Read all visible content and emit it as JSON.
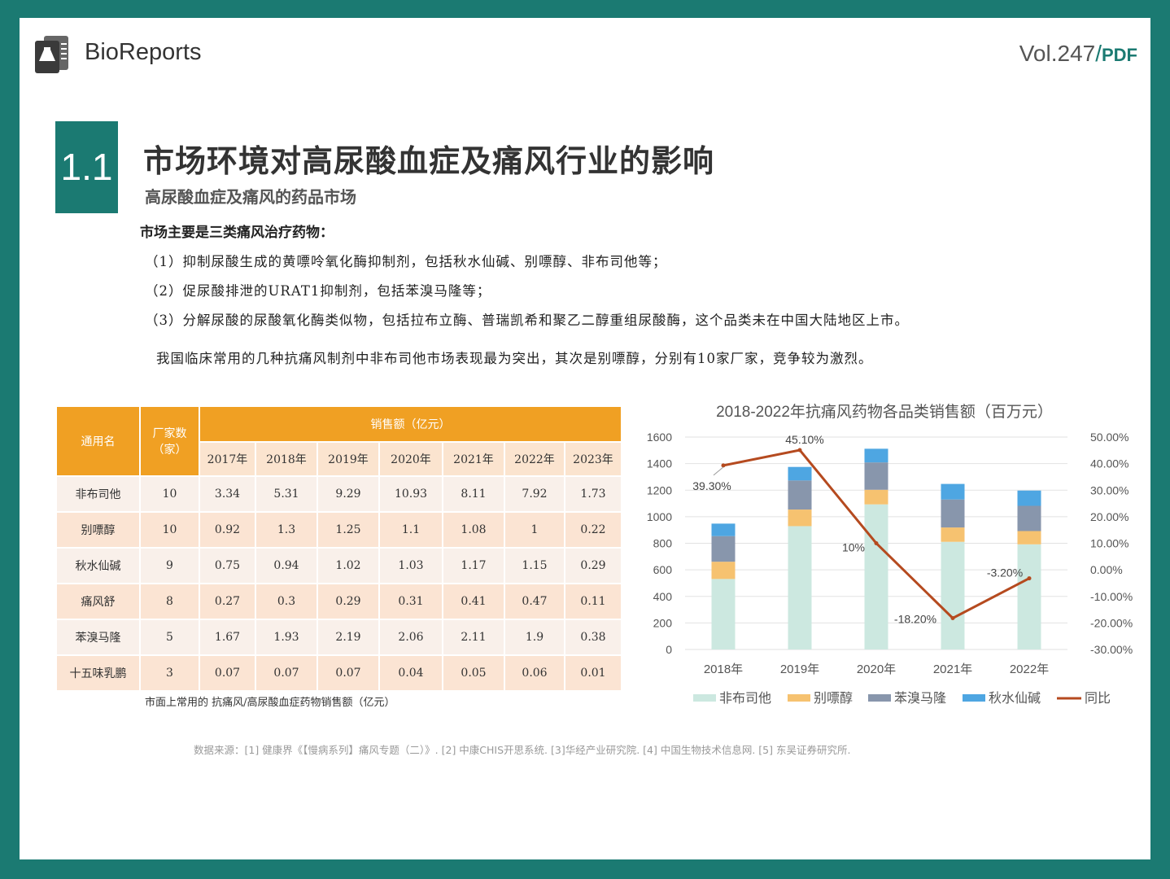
{
  "header": {
    "brand": "BioReports",
    "vol": "Vol.247",
    "slash": "/",
    "pdf": "PDF"
  },
  "section": {
    "number": "1.1",
    "title": "市场环境对高尿酸血症及痛风行业的影响",
    "subtitle": "高尿酸血症及痛风的药品市场"
  },
  "body": {
    "intro": "市场主要是三类痛风治疗药物：",
    "bullets": [
      "（1）抑制尿酸生成的黄嘌呤氧化酶抑制剂，包括秋水仙碱、别嘌醇、非布司他等；",
      "（2）促尿酸排泄的URAT1抑制剂，包括苯溴马隆等；",
      "（3）分解尿酸的尿酸氧化酶类似物，包括拉布立酶、普瑞凯希和聚乙二醇重组尿酸酶，这个品类未在中国大陆地区上市。"
    ],
    "paragraph": "我国临床常用的几种抗痛风制剂中非布司他市场表现最为突出，其次是别嘌醇，分别有10家厂家，竞争较为激烈。"
  },
  "table": {
    "col_name": "通用名",
    "col_makers_1": "厂家数",
    "col_makers_2": "（家）",
    "col_sales": "销售额（亿元）",
    "years": [
      "2017年",
      "2018年",
      "2019年",
      "2020年",
      "2021年",
      "2022年",
      "2023年"
    ],
    "rows": [
      {
        "name": "非布司他",
        "makers": "10",
        "values": [
          "3.34",
          "5.31",
          "9.29",
          "10.93",
          "8.11",
          "7.92",
          "1.73"
        ]
      },
      {
        "name": "别嘌醇",
        "makers": "10",
        "values": [
          "0.92",
          "1.3",
          "1.25",
          "1.1",
          "1.08",
          "1",
          "0.22"
        ]
      },
      {
        "name": "秋水仙碱",
        "makers": "9",
        "values": [
          "0.75",
          "0.94",
          "1.02",
          "1.03",
          "1.17",
          "1.15",
          "0.29"
        ]
      },
      {
        "name": "痛风舒",
        "makers": "8",
        "values": [
          "0.27",
          "0.3",
          "0.29",
          "0.31",
          "0.41",
          "0.47",
          "0.11"
        ]
      },
      {
        "name": "苯溴马隆",
        "makers": "5",
        "values": [
          "1.67",
          "1.93",
          "2.19",
          "2.06",
          "2.11",
          "1.9",
          "0.38"
        ]
      },
      {
        "name": "十五味乳鹏",
        "makers": "3",
        "values": [
          "0.07",
          "0.07",
          "0.07",
          "0.04",
          "0.05",
          "0.06",
          "0.01"
        ]
      }
    ],
    "caption": "市面上常用的 抗痛风/高尿酸血症药物销售额（亿元）"
  },
  "chart_data": {
    "type": "bar",
    "stacked": true,
    "title": "2018-2022年抗痛风药物各品类销售额（百万元）",
    "categories": [
      "2018年",
      "2019年",
      "2020年",
      "2021年",
      "2022年"
    ],
    "series": [
      {
        "name": "非布司他",
        "color": "#cce8e0",
        "values": [
          531,
          929,
          1093,
          811,
          792
        ]
      },
      {
        "name": "别嘌醇",
        "color": "#f6c270",
        "values": [
          130,
          125,
          110,
          108,
          100
        ]
      },
      {
        "name": "苯溴马隆",
        "color": "#8896ac",
        "values": [
          193,
          219,
          206,
          211,
          190
        ]
      },
      {
        "name": "秋水仙碱",
        "color": "#4ea6e2",
        "values": [
          94,
          102,
          103,
          117,
          115
        ]
      }
    ],
    "line": {
      "name": "同比",
      "color": "#b54a1f",
      "values": [
        39.3,
        45.1,
        10,
        -18.2,
        -3.2
      ],
      "labels": [
        "39.30%",
        "45.10%",
        "10%",
        "-18.20%",
        "-3.20%"
      ]
    },
    "y_left": {
      "min": 0,
      "max": 1600,
      "ticks": [
        "0",
        "200",
        "400",
        "600",
        "800",
        "1000",
        "1200",
        "1400",
        "1600"
      ]
    },
    "y_right": {
      "min": -30,
      "max": 50,
      "ticks": [
        "-30.00%",
        "-20.00%",
        "-10.00%",
        "0.00%",
        "10.00%",
        "20.00%",
        "30.00%",
        "40.00%",
        "50.00%"
      ]
    },
    "grid": true,
    "legend": "bottom"
  },
  "source": "数据来源：[1] 健康界《【慢病系列】痛风专题（二）》. [2] 中康CHIS开思系统. [3]华经产业研究院. [4] 中国生物技术信息网. [5] 东吴证券研究所."
}
